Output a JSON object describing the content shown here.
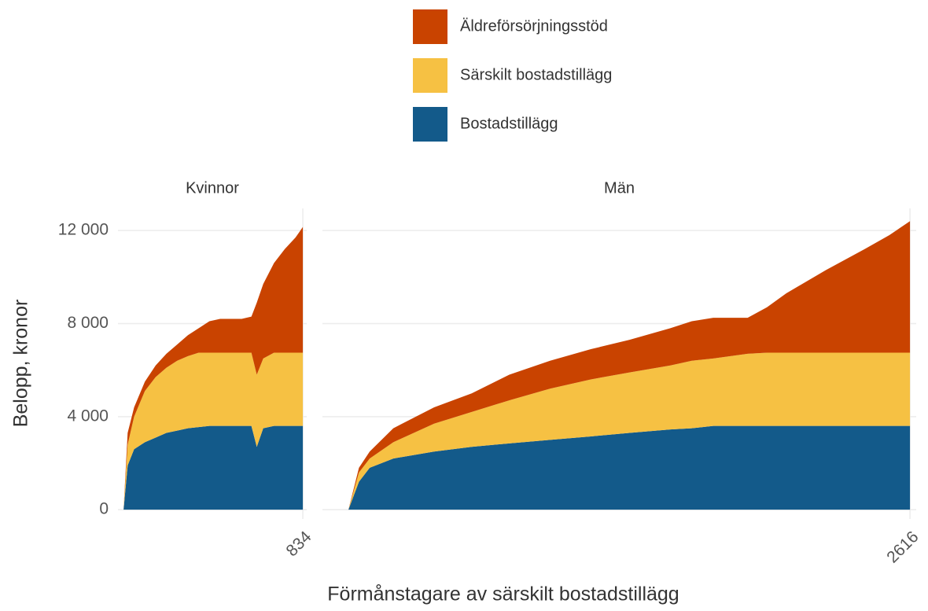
{
  "chart_data": {
    "type": "area",
    "stacked": true,
    "xlabel": "Förmånstagare av särskilt bostadstillägg",
    "ylabel": "Belopp, kronor",
    "ylim": [
      -400,
      12950
    ],
    "yticks": [
      0,
      {
        "value": 4000,
        "label": "4 000"
      },
      {
        "value": 8000,
        "label": "8 000"
      },
      {
        "value": 12000,
        "label": "12 000"
      }
    ],
    "grid": true,
    "series": [
      {
        "name": "Bostadstillägg",
        "color": "#135a8a"
      },
      {
        "name": "Särskilt bostadstillägg",
        "color": "#f6c143"
      },
      {
        "name": "Äldreförsörjningsstöd",
        "color": "#c94300"
      }
    ],
    "facets": [
      {
        "title": "Kvinnor",
        "x": [
          1,
          20,
          50,
          100,
          150,
          200,
          250,
          300,
          350,
          400,
          450,
          500,
          550,
          595,
          620,
          650,
          700,
          750,
          800,
          834
        ],
        "xlim": [
          -25,
          852
        ],
        "xticks": [
          834
        ],
        "values": [
          [
            0,
            1900,
            2600,
            2900,
            3100,
            3300,
            3400,
            3500,
            3550,
            3600,
            3600,
            3600,
            3600,
            3600,
            2700,
            3500,
            3600,
            3600,
            3600,
            3600
          ],
          [
            0,
            900,
            1400,
            2200,
            2600,
            2800,
            3000,
            3100,
            3200,
            3150,
            3150,
            3150,
            3150,
            3150,
            3100,
            3000,
            3150,
            3150,
            3150,
            3150
          ],
          [
            0,
            500,
            400,
            400,
            500,
            600,
            700,
            900,
            1050,
            1350,
            1450,
            1450,
            1450,
            1550,
            3100,
            3200,
            3850,
            4450,
            4950,
            5400
          ]
        ]
      },
      {
        "title": "Män",
        "x": [
          1,
          50,
          100,
          210,
          400,
          575,
          750,
          940,
          1130,
          1310,
          1500,
          1600,
          1700,
          1860,
          1950,
          2040,
          2225,
          2405,
          2520,
          2616
        ],
        "xlim": [
          -120,
          2645
        ],
        "xticks": [
          2616
        ],
        "values": [
          [
            0,
            1200,
            1800,
            2200,
            2500,
            2700,
            2850,
            3000,
            3150,
            3300,
            3450,
            3500,
            3600,
            3600,
            3600,
            3600,
            3600,
            3600,
            3600,
            3600
          ],
          [
            0,
            400,
            400,
            700,
            1200,
            1500,
            1850,
            2200,
            2450,
            2600,
            2750,
            2900,
            2900,
            3100,
            3150,
            3150,
            3150,
            3150,
            3150,
            3150
          ],
          [
            0,
            200,
            300,
            600,
            700,
            800,
            1100,
            1200,
            1300,
            1400,
            1600,
            1700,
            1750,
            1550,
            1950,
            2550,
            3550,
            4450,
            5050,
            5650
          ]
        ]
      }
    ]
  }
}
